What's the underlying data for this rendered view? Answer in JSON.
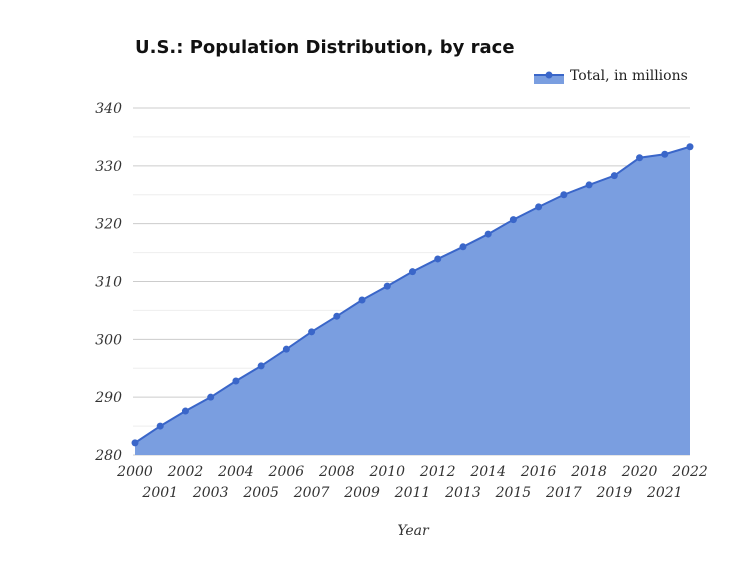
{
  "chart_data": {
    "type": "area",
    "title": "U.S.: Population Distribution, by race",
    "xlabel": "Year",
    "ylabel": "",
    "legend": {
      "position": "top-right"
    },
    "grid": true,
    "ylim": [
      280,
      340
    ],
    "yticks": [
      "280",
      "290",
      "300",
      "310",
      "320",
      "330",
      "340"
    ],
    "x": [
      "2000",
      "2001",
      "2002",
      "2003",
      "2004",
      "2005",
      "2006",
      "2007",
      "2008",
      "2009",
      "2010",
      "2011",
      "2012",
      "2013",
      "2014",
      "2015",
      "2016",
      "2017",
      "2018",
      "2019",
      "2020",
      "2021",
      "2022"
    ],
    "series": [
      {
        "name": "Total, in millions",
        "color": "#3a66c9",
        "fill": "#7a9ee0",
        "values": [
          282.1,
          285.0,
          287.6,
          290.0,
          292.8,
          295.4,
          298.3,
          301.3,
          304.0,
          306.8,
          309.2,
          311.7,
          313.9,
          316.0,
          318.2,
          320.7,
          322.9,
          325.0,
          326.7,
          328.3,
          331.4,
          332.0,
          333.3
        ]
      }
    ]
  }
}
